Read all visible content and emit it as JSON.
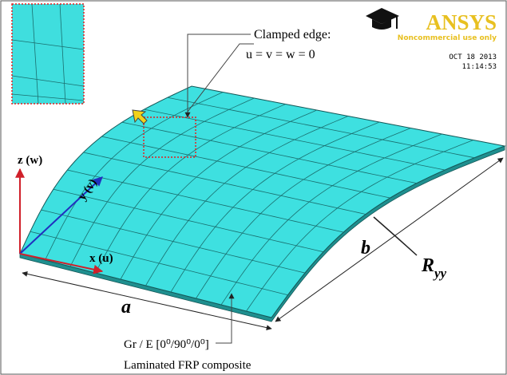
{
  "logo": {
    "title": "ANSYS",
    "note": "Noncommercial use only"
  },
  "timestamp": {
    "date": "OCT 18 2013",
    "time": "11:14:53"
  },
  "annotations": {
    "boundary": {
      "title": "Clamped edge:",
      "condition": "u = v = w = 0"
    },
    "axes": {
      "z": "z (w)",
      "y": "y (v)",
      "x": "x (u)"
    },
    "dimensions": {
      "a": "a",
      "b": "b",
      "radius": {
        "symbol": "R",
        "subscript": "yy"
      }
    },
    "material": {
      "layup": "Gr / E [0⁰/90⁰/0⁰]",
      "description": "Laminated FRP composite"
    }
  }
}
